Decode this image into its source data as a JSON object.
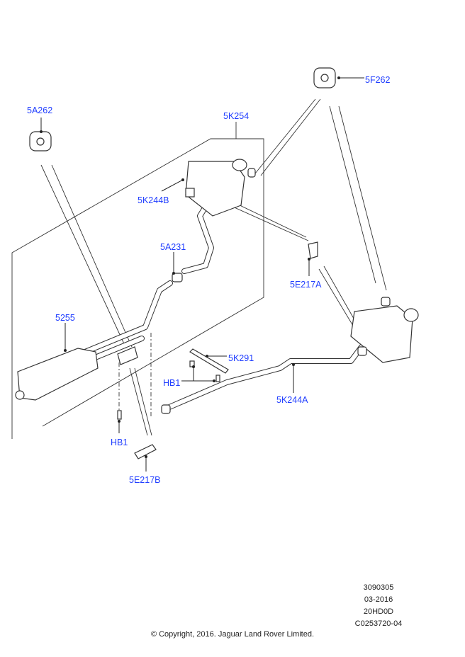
{
  "diagram": {
    "labels": {
      "l5F262": "5F262",
      "l5A262": "5A262",
      "l5K254": "5K254",
      "l5K244B": "5K244B",
      "l5A231": "5A231",
      "l5E217A": "5E217A",
      "l5255": "5255",
      "l5K291": "5K291",
      "lHB1a": "HB1",
      "l5K244A": "5K244A",
      "lHB1b": "HB1",
      "l5E217B": "5E217B"
    },
    "label_color": "#1f3dff"
  },
  "footer": {
    "code1": "3090305",
    "date": "03-2016",
    "model": "20HD0D",
    "ref": "C0253720-04",
    "copyright": "© Copyright, 2016. Jaguar Land Rover Limited."
  }
}
